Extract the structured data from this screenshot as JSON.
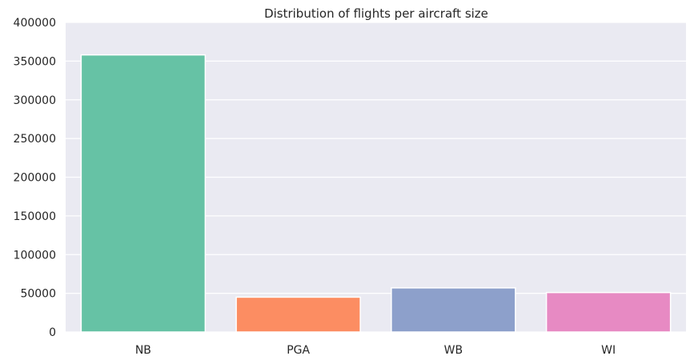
{
  "chart_data": {
    "type": "bar",
    "title": "Distribution of flights per aircraft size",
    "xlabel": "",
    "ylabel": "",
    "categories": [
      "NB",
      "PGA",
      "WB",
      "WI"
    ],
    "values": [
      358000,
      45000,
      57000,
      51000
    ],
    "colors": [
      "#66c2a5",
      "#fc8d62",
      "#8da0cb",
      "#e78ac3"
    ],
    "ylim": [
      0,
      400000
    ],
    "yticks": [
      0,
      50000,
      100000,
      150000,
      200000,
      250000,
      300000,
      350000,
      400000
    ],
    "grid": true,
    "background": "#eaeaf2"
  }
}
